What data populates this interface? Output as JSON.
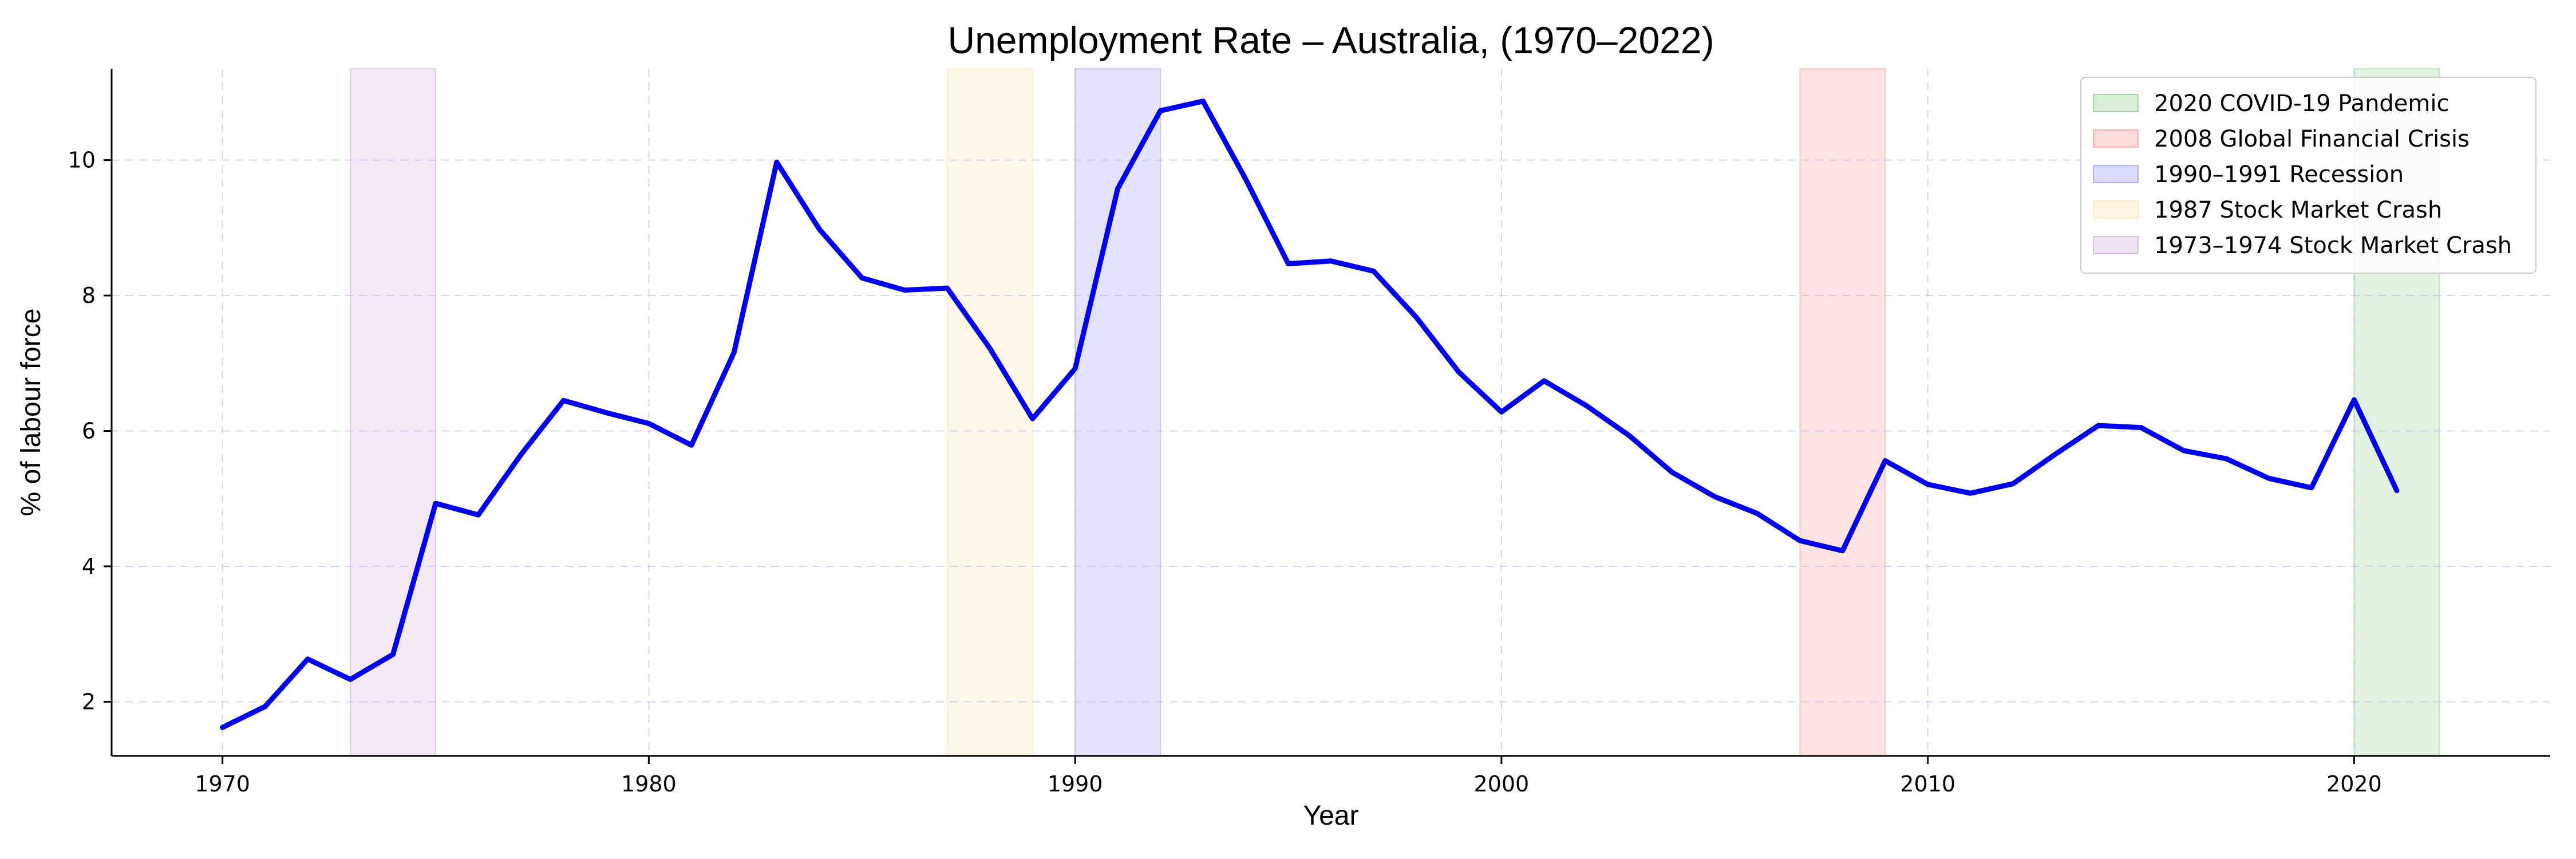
{
  "chart_data": {
    "type": "line",
    "title": "Unemployment Rate – Australia, (1970–2022)",
    "xlabel": "Year",
    "ylabel": "% of labour force",
    "xlim": [
      1967.4,
      2024.6
    ],
    "ylim": [
      1.2,
      11.35
    ],
    "xticks": [
      1970,
      1980,
      1990,
      2000,
      2010,
      2020
    ],
    "yticks": [
      2,
      4,
      6,
      8,
      10
    ],
    "grid": true,
    "legend_position": "top-right",
    "series": [
      {
        "color": "#0000ee",
        "x": [
          1970,
          1971,
          1972,
          1973,
          1974,
          1975,
          1976,
          1977,
          1978,
          1979,
          1980,
          1981,
          1982,
          1983,
          1984,
          1985,
          1986,
          1987,
          1988,
          1989,
          1990,
          1991,
          1992,
          1993,
          1994,
          1995,
          1996,
          1997,
          1998,
          1999,
          2000,
          2001,
          2002,
          2003,
          2004,
          2005,
          2006,
          2007,
          2008,
          2009,
          2010,
          2011,
          2012,
          2013,
          2014,
          2015,
          2016,
          2017,
          2018,
          2019,
          2020,
          2021
        ],
        "y": [
          1.62,
          1.93,
          2.63,
          2.33,
          2.7,
          4.93,
          4.76,
          5.65,
          6.45,
          6.27,
          6.11,
          5.79,
          7.16,
          9.97,
          8.98,
          8.26,
          8.08,
          8.11,
          7.22,
          6.18,
          6.92,
          9.58,
          10.73,
          10.87,
          9.72,
          8.47,
          8.51,
          8.36,
          7.68,
          6.87,
          6.28,
          6.74,
          6.37,
          5.93,
          5.39,
          5.03,
          4.78,
          4.38,
          4.23,
          5.56,
          5.21,
          5.08,
          5.22,
          5.66,
          6.08,
          6.05,
          5.71,
          5.59,
          5.3,
          5.16,
          6.46,
          5.12
        ]
      }
    ],
    "shaded_periods": [
      {
        "label": "2020 COVID-19 Pandemic",
        "start": 2020,
        "end": 2022,
        "color": "#2ca02c"
      },
      {
        "label": "2008 Global Financial Crisis",
        "start": 2007,
        "end": 2009,
        "color": "#ff3b3b"
      },
      {
        "label": "1990–1991 Recession",
        "start": 1990,
        "end": 1992,
        "color": "#3b3bff"
      },
      {
        "label": "1987 Stock Market Crash",
        "start": 1987,
        "end": 1989,
        "color": "#ffc966"
      },
      {
        "label": "1973–1974 Stock Market Crash",
        "start": 1973,
        "end": 1975,
        "color": "#a95cbf"
      }
    ]
  }
}
